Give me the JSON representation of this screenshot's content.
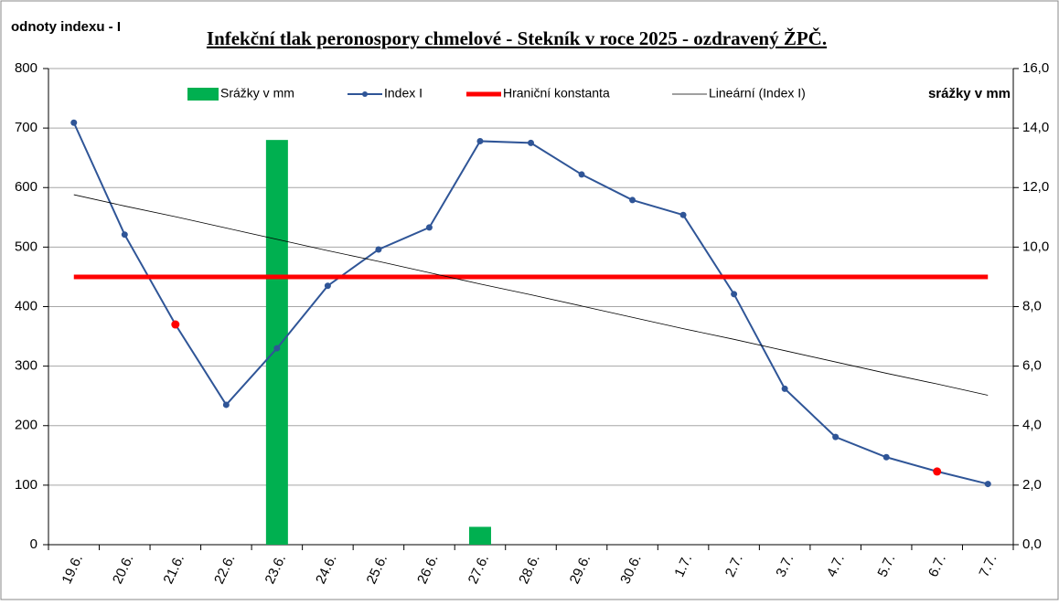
{
  "chart_data": {
    "type": "combo",
    "title": "Infekční tlak peronospory chmelové  - Stekník v roce 2025 - ozdravený ŽPČ.",
    "y_label": "odnoty indexu - I",
    "y2_label": "srážky v mm",
    "categories": [
      "19.6.",
      "20.6.",
      "21.6.",
      "22.6.",
      "23.6.",
      "24.6.",
      "25.6.",
      "26.6.",
      "27.6.",
      "28.6.",
      "29.6.",
      "30.6.",
      "1.7.",
      "2.7.",
      "3.7.",
      "4.7.",
      "5.7.",
      "6.7.",
      "7.7."
    ],
    "series": [
      {
        "name": "Srážky v mm",
        "type": "bar",
        "axis": "y2",
        "color": "#00b050",
        "values": [
          null,
          null,
          null,
          null,
          13.6,
          null,
          null,
          null,
          0.6,
          null,
          null,
          null,
          null,
          null,
          null,
          null,
          null,
          null,
          null
        ]
      },
      {
        "name": "Index I",
        "type": "line",
        "color": "#2f5597",
        "line_width": 2,
        "marker": true,
        "highlight_indices": [
          2,
          17
        ],
        "highlight_color": "#ff0000",
        "values": [
          709,
          521,
          370,
          235,
          330,
          435,
          496,
          533,
          678,
          675,
          622,
          579,
          554,
          421,
          262,
          181,
          147,
          123,
          102
        ]
      },
      {
        "name": "Hraniční konstanta",
        "type": "line",
        "color": "#ff0000",
        "line_width": 5,
        "marker": false,
        "values": [
          450,
          450,
          450,
          450,
          450,
          450,
          450,
          450,
          450,
          450,
          450,
          450,
          450,
          450,
          450,
          450,
          450,
          450,
          450
        ]
      },
      {
        "name": "Lineární (Index I)",
        "type": "line",
        "color": "#000000",
        "line_width": 0.8,
        "marker": false,
        "values": [
          588,
          569,
          551,
          532,
          513,
          494,
          476,
          457,
          438,
          420,
          401,
          382,
          363,
          345,
          326,
          307,
          288,
          270,
          251
        ]
      }
    ],
    "ylim": [
      0,
      800
    ],
    "yticks": [
      0,
      100,
      200,
      300,
      400,
      500,
      600,
      700,
      800
    ],
    "y2lim": [
      0,
      16
    ],
    "y2ticks": [
      {
        "value": 0,
        "label": "0,0"
      },
      {
        "value": 2,
        "label": "2,0"
      },
      {
        "value": 4,
        "label": "4,0"
      },
      {
        "value": 6,
        "label": "6,0"
      },
      {
        "value": 8,
        "label": "8,0"
      },
      {
        "value": 10,
        "label": "10,0"
      },
      {
        "value": 12,
        "label": "12,0"
      },
      {
        "value": 14,
        "label": "14,0"
      },
      {
        "value": 16,
        "label": "16,0"
      }
    ],
    "grid": true
  }
}
